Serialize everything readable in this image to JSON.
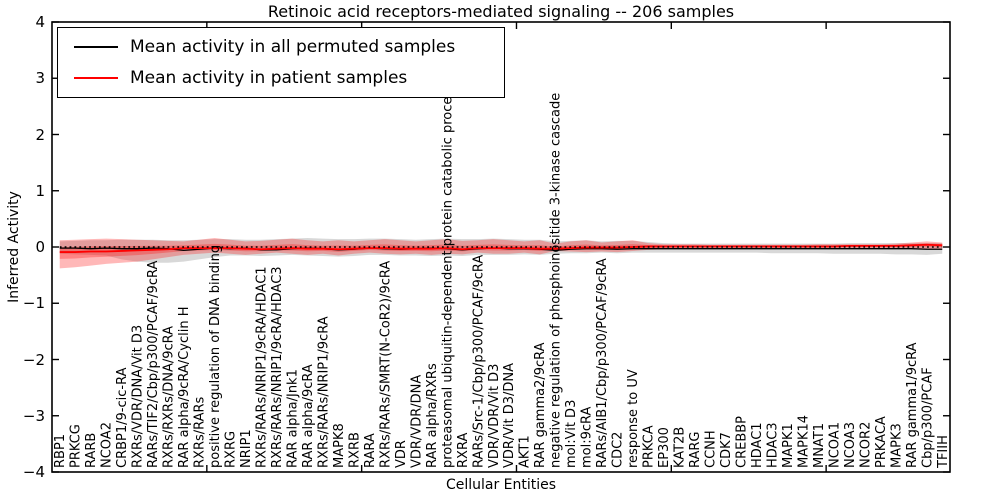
{
  "axes": {
    "ytick_labels": [
      "4",
      "3",
      "2",
      "1",
      "0",
      "−1",
      "−2",
      "−3",
      "−4"
    ],
    "ytick_values": [
      4,
      3,
      2,
      1,
      0,
      -1,
      -2,
      -3,
      -4
    ],
    "xticks_at": [
      10,
      20,
      30,
      40,
      50
    ]
  },
  "legend": {
    "entries": [
      {
        "label": "Mean activity in all permuted samples",
        "color": "#000000"
      },
      {
        "label": "Mean activity in patient samples",
        "color": "#ff0000"
      }
    ],
    "position": "upper left"
  },
  "colors": {
    "permuted_line": "#000000",
    "patient_line": "#ff0000",
    "permuted_band": "#999999",
    "patient_band": "#ff0000",
    "background": "#ffffff"
  },
  "chart_data": {
    "type": "line",
    "title": "Retinoic acid receptors-mediated signaling -- 206 samples",
    "xlabel": "Cellular Entities",
    "ylabel": "Inferred Activity",
    "ylim": [
      -4,
      4
    ],
    "grid": false,
    "legend_position": "upper left",
    "zero_line": {
      "y": 0,
      "style": "dotted",
      "color": "#000000"
    },
    "categories": [
      "RBP1",
      "PRKCG",
      "RARB",
      "NCOA2",
      "CRBP1/9-cic-RA",
      "RXRs/VDR/DNA/Vit D3",
      "RARs/TIF2/Cbp/p300/PCAF/9cRA",
      "RXRs/RXRs/DNA/9cRA",
      "RAR alpha/9cRA/Cyclin H",
      "RXRs/RARs",
      "positive regulation of DNA binding",
      "RXRG",
      "NRIP1",
      "RXRs/RARs/NRIP1/9cRA/HDAC1",
      "RXRs/RARs/NRIP1/9cRA/HDAC3",
      "RAR alpha/Jnk1",
      "RAR alpha/9cRA",
      "RXRs/RARs/NRIP1/9cRA",
      "MAPK8",
      "RXRB",
      "RARA",
      "RXRs/RARs/SMRT(N-CoR2)/9cRA",
      "VDR",
      "VDR/VDR/DNA",
      "RAR alpha/RXRs",
      "proteasomal ubiquitin-dependent protein catabolic process",
      "RXRA",
      "RARs/Src-1/Cbp/p300/PCAF/9cRA",
      "VDR/VDR/Vit D3",
      "VDR/Vit D3/DNA",
      "AKT1",
      "RAR gamma2/9cRA",
      "negative regulation of phosphoinositide 3-kinase cascade",
      "mol:Vit D3",
      "mol:9cRA",
      "RARs/AIB1/Cbp/p300/PCAF/9cRA",
      "CDC2",
      "response to UV",
      "PRKCA",
      "EP300",
      "KAT2B",
      "RARG",
      "CCNH",
      "CDK7",
      "CREBBP",
      "HDAC1",
      "HDAC3",
      "MAPK1",
      "MAPK14",
      "MNAT1",
      "NCOA1",
      "NCOA3",
      "NCOR2",
      "PRKACA",
      "MAPK3",
      "RAR gamma1/9cRA",
      "Cbp/p300/PCAF",
      "TFIIH"
    ],
    "series": [
      {
        "name": "Mean activity in all permuted samples",
        "kind": "line",
        "color": "#000000",
        "values": [
          -0.02,
          -0.02,
          -0.03,
          -0.02,
          -0.03,
          -0.03,
          -0.02,
          -0.03,
          -0.06,
          -0.04,
          -0.02,
          -0.03,
          -0.02,
          -0.05,
          -0.05,
          -0.03,
          -0.02,
          -0.03,
          -0.05,
          -0.04,
          -0.02,
          -0.03,
          -0.04,
          -0.03,
          -0.02,
          -0.03,
          -0.05,
          -0.03,
          -0.02,
          -0.03,
          -0.03,
          -0.04,
          -0.06,
          -0.04,
          -0.03,
          -0.03,
          -0.04,
          -0.03,
          -0.03,
          -0.03,
          -0.03,
          -0.03,
          -0.03,
          -0.03,
          -0.03,
          -0.03,
          -0.03,
          -0.03,
          -0.03,
          -0.03,
          -0.03,
          -0.03,
          -0.03,
          -0.03,
          -0.03,
          -0.03,
          -0.04,
          -0.04
        ]
      },
      {
        "name": "Mean activity in patient samples",
        "kind": "line",
        "color": "#ff0000",
        "values": [
          -0.09,
          -0.09,
          -0.08,
          -0.08,
          -0.07,
          -0.06,
          -0.05,
          -0.04,
          -0.02,
          -0.02,
          -0.02,
          -0.02,
          -0.03,
          -0.04,
          -0.03,
          -0.02,
          -0.03,
          -0.03,
          -0.04,
          -0.03,
          -0.02,
          -0.02,
          -0.03,
          -0.03,
          -0.03,
          -0.02,
          -0.04,
          -0.02,
          -0.02,
          -0.02,
          -0.02,
          -0.03,
          -0.03,
          -0.02,
          -0.01,
          -0.01,
          -0.01,
          0.0,
          0.01,
          0.01,
          0.01,
          0.01,
          0.01,
          0.01,
          0.01,
          0.01,
          0.01,
          0.01,
          0.01,
          0.01,
          0.01,
          0.02,
          0.02,
          0.02,
          0.02,
          0.03,
          0.04,
          0.03
        ]
      },
      {
        "name": "Permuted samples spread (estimated)",
        "kind": "band",
        "color": "#999999",
        "upper": [
          0.1,
          0.11,
          0.12,
          0.12,
          0.13,
          0.13,
          0.13,
          0.12,
          0.12,
          0.13,
          0.14,
          0.14,
          0.13,
          0.13,
          0.14,
          0.15,
          0.16,
          0.15,
          0.14,
          0.14,
          0.15,
          0.15,
          0.14,
          0.13,
          0.14,
          0.15,
          0.14,
          0.14,
          0.15,
          0.14,
          0.13,
          0.13,
          0.1,
          0.11,
          0.12,
          0.1,
          0.11,
          0.11,
          0.09,
          0.07,
          0.06,
          0.06,
          0.06,
          0.06,
          0.06,
          0.06,
          0.06,
          0.06,
          0.06,
          0.06,
          0.06,
          0.07,
          0.07,
          0.07,
          0.07,
          0.07,
          0.07,
          0.07
        ],
        "lower": [
          -0.12,
          -0.13,
          -0.14,
          -0.15,
          -0.22,
          -0.26,
          -0.28,
          -0.28,
          -0.26,
          -0.22,
          -0.18,
          -0.15,
          -0.15,
          -0.16,
          -0.15,
          -0.14,
          -0.15,
          -0.16,
          -0.17,
          -0.16,
          -0.14,
          -0.14,
          -0.15,
          -0.15,
          -0.16,
          -0.15,
          -0.16,
          -0.14,
          -0.14,
          -0.14,
          -0.13,
          -0.14,
          -0.12,
          -0.11,
          -0.11,
          -0.1,
          -0.11,
          -0.1,
          -0.1,
          -0.1,
          -0.1,
          -0.1,
          -0.1,
          -0.1,
          -0.1,
          -0.1,
          -0.11,
          -0.11,
          -0.11,
          -0.11,
          -0.12,
          -0.12,
          -0.12,
          -0.12,
          -0.13,
          -0.13,
          -0.14,
          -0.12
        ]
      },
      {
        "name": "Patient samples spread (estimated)",
        "kind": "band",
        "color": "#ff0000",
        "upper": [
          0.12,
          0.13,
          0.14,
          0.15,
          0.14,
          0.13,
          0.12,
          0.11,
          0.1,
          0.13,
          0.16,
          0.13,
          0.1,
          0.11,
          0.13,
          0.15,
          0.12,
          0.1,
          0.12,
          0.1,
          0.12,
          0.14,
          0.12,
          0.1,
          0.12,
          0.14,
          0.11,
          0.12,
          0.14,
          0.12,
          0.1,
          0.12,
          0.06,
          0.1,
          0.12,
          0.08,
          0.1,
          0.12,
          0.07,
          0.05,
          0.05,
          0.05,
          0.04,
          0.04,
          0.04,
          0.04,
          0.04,
          0.04,
          0.04,
          0.05,
          0.05,
          0.05,
          0.05,
          0.05,
          0.06,
          0.08,
          0.1,
          0.08
        ],
        "lower": [
          -0.38,
          -0.36,
          -0.33,
          -0.3,
          -0.28,
          -0.26,
          -0.22,
          -0.18,
          -0.14,
          -0.12,
          -0.1,
          -0.12,
          -0.14,
          -0.12,
          -0.1,
          -0.12,
          -0.14,
          -0.12,
          -0.15,
          -0.12,
          -0.1,
          -0.12,
          -0.13,
          -0.12,
          -0.14,
          -0.12,
          -0.13,
          -0.1,
          -0.12,
          -0.12,
          -0.1,
          -0.13,
          -0.07,
          -0.08,
          -0.09,
          -0.08,
          -0.09,
          -0.07,
          -0.05,
          -0.04,
          -0.03,
          -0.03,
          -0.03,
          -0.03,
          -0.03,
          -0.03,
          -0.03,
          -0.03,
          -0.03,
          -0.03,
          -0.03,
          -0.03,
          -0.03,
          -0.03,
          -0.03,
          -0.03,
          -0.04,
          -0.04
        ]
      }
    ]
  }
}
